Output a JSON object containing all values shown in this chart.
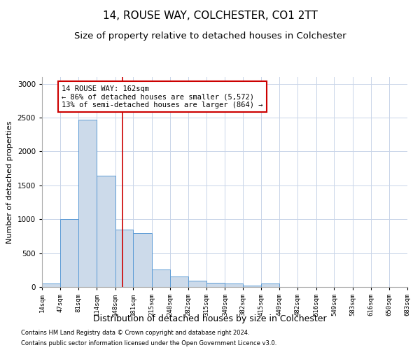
{
  "title1": "14, ROUSE WAY, COLCHESTER, CO1 2TT",
  "title2": "Size of property relative to detached houses in Colchester",
  "xlabel": "Distribution of detached houses by size in Colchester",
  "ylabel": "Number of detached properties",
  "footnote1": "Contains HM Land Registry data © Crown copyright and database right 2024.",
  "footnote2": "Contains public sector information licensed under the Open Government Licence v3.0.",
  "annotation_line1": "14 ROUSE WAY: 162sqm",
  "annotation_line2": "← 86% of detached houses are smaller (5,572)",
  "annotation_line3": "13% of semi-detached houses are larger (864) →",
  "bar_edges": [
    14,
    47,
    81,
    114,
    148,
    181,
    215,
    248,
    282,
    315,
    349,
    382,
    415,
    449,
    482,
    516,
    549,
    583,
    616,
    650,
    683
  ],
  "bar_heights": [
    50,
    1000,
    2470,
    1640,
    850,
    800,
    260,
    155,
    95,
    60,
    50,
    25,
    50,
    0,
    0,
    0,
    0,
    0,
    0,
    0
  ],
  "bar_color": "#ccdaea",
  "bar_edge_color": "#5b9bd5",
  "property_line_x": 162,
  "property_line_color": "#cc0000",
  "annotation_box_color": "#cc0000",
  "background_color": "#ffffff",
  "grid_color": "#c8d4e8",
  "ylim": [
    0,
    3100
  ],
  "yticks": [
    0,
    500,
    1000,
    1500,
    2000,
    2500,
    3000
  ],
  "title1_fontsize": 11,
  "title2_fontsize": 9.5,
  "xlabel_fontsize": 9,
  "ylabel_fontsize": 8,
  "annotation_fontsize": 7.5,
  "footnote_fontsize": 6,
  "tick_labels": [
    "14sqm",
    "47sqm",
    "81sqm",
    "114sqm",
    "148sqm",
    "181sqm",
    "215sqm",
    "248sqm",
    "282sqm",
    "315sqm",
    "349sqm",
    "382sqm",
    "415sqm",
    "449sqm",
    "482sqm",
    "516sqm",
    "549sqm",
    "583sqm",
    "616sqm",
    "650sqm",
    "683sqm"
  ]
}
